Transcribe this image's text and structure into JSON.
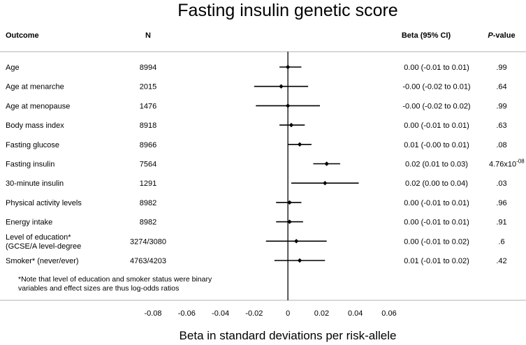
{
  "chart_data": {
    "type": "forest",
    "title": "Fasting insulin genetic score",
    "xlabel": "Beta in standard deviations per risk-allele",
    "headers": {
      "outcome": "Outcome",
      "n": "N",
      "beta": "Beta (95% CI)",
      "p_prefix": "P",
      "p_suffix": "-value"
    },
    "xlim": [
      -0.08,
      0.06
    ],
    "xticks": [
      "-0.08",
      "-0.06",
      "-0.04",
      "-0.02",
      "0",
      "0.02",
      "0.04",
      "0.06"
    ],
    "rows": [
      {
        "outcome": [
          "Age"
        ],
        "n": "8994",
        "beta": 0.0,
        "lo": -0.005,
        "hi": 0.008,
        "ci_text": "0.00 (-0.01 to 0.01)",
        "p": ".99"
      },
      {
        "outcome": [
          "Age at menarche"
        ],
        "n": "2015",
        "beta": -0.004,
        "lo": -0.02,
        "hi": 0.012,
        "ci_text": "-0.00 (-0.02 to 0.01)",
        "p": ".64"
      },
      {
        "outcome": [
          "Age at menopause"
        ],
        "n": "1476",
        "beta": 0.0,
        "lo": -0.019,
        "hi": 0.019,
        "ci_text": "-0.00 (-0.02 to 0.02)",
        "p": ".99"
      },
      {
        "outcome": [
          "Body mass index"
        ],
        "n": "8918",
        "beta": 0.002,
        "lo": -0.005,
        "hi": 0.01,
        "ci_text": "0.00 (-0.01 to 0.01)",
        "p": ".63"
      },
      {
        "outcome": [
          "Fasting glucose"
        ],
        "n": "8966",
        "beta": 0.007,
        "lo": 0.0,
        "hi": 0.014,
        "ci_text": "0.01 (-0.00 to 0.01)",
        "p": ".08"
      },
      {
        "outcome": [
          "Fasting insulin"
        ],
        "n": "7564",
        "beta": 0.023,
        "lo": 0.015,
        "hi": 0.031,
        "ci_text": "0.02 (0.01 to 0.03)",
        "p": "4.76x10",
        "p_exp": "-08"
      },
      {
        "outcome": [
          "30-minute insulin"
        ],
        "n": "1291",
        "beta": 0.022,
        "lo": 0.002,
        "hi": 0.042,
        "ci_text": "0.02 (0.00 to 0.04)",
        "p": ".03"
      },
      {
        "outcome": [
          "Physical activity levels"
        ],
        "n": "8982",
        "beta": 0.001,
        "lo": -0.007,
        "hi": 0.008,
        "ci_text": "0.00 (-0.01 to 0.01)",
        "p": ".96"
      },
      {
        "outcome": [
          "Energy intake"
        ],
        "n": "8982",
        "beta": 0.001,
        "lo": -0.007,
        "hi": 0.009,
        "ci_text": "0.00 (-0.01 to 0.01)",
        "p": ".91"
      },
      {
        "outcome": [
          "Level of education*",
          "(GCSE/A level-degree"
        ],
        "n": "3274/3080",
        "beta": 0.005,
        "lo": -0.013,
        "hi": 0.023,
        "ci_text": "0.00 (-0.01 to 0.02)",
        "p": ".6"
      },
      {
        "outcome": [
          "Smoker* (never/ever)"
        ],
        "n": "4763/4203",
        "beta": 0.007,
        "lo": -0.008,
        "hi": 0.022,
        "ci_text": "0.01 (-0.01 to 0.02)",
        "p": ".42"
      }
    ],
    "note": [
      "*Note that level of education and smoker status were binary",
      "variables and effect sizes are thus log-odds ratios"
    ]
  }
}
